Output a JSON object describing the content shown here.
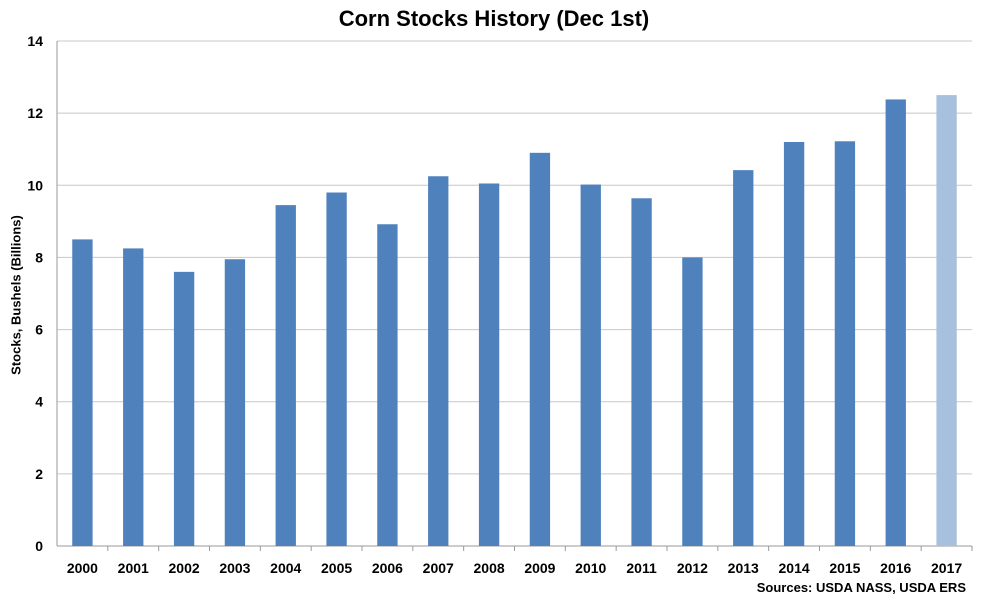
{
  "chart_data": {
    "type": "bar",
    "title": "Corn Stocks History (Dec 1st)",
    "ylabel": "Stocks, Bushels (Billions)",
    "xlabel": "",
    "source": "Sources: USDA NASS, USDA ERS",
    "ylim": [
      0,
      14
    ],
    "yticks": [
      0,
      2,
      4,
      6,
      8,
      10,
      12,
      14
    ],
    "grid": true,
    "categories": [
      "2000",
      "2001",
      "2002",
      "2003",
      "2004",
      "2005",
      "2006",
      "2007",
      "2008",
      "2009",
      "2010",
      "2011",
      "2012",
      "2013",
      "2014",
      "2015",
      "2016",
      "2017"
    ],
    "values": [
      8.5,
      8.25,
      7.6,
      7.95,
      9.45,
      9.8,
      8.92,
      10.25,
      10.05,
      10.9,
      10.02,
      9.64,
      8.0,
      10.42,
      11.2,
      11.22,
      12.38,
      12.5
    ],
    "colors": {
      "bar": "#4f81bd",
      "highlight_bar": "#a7c0de",
      "grid": "#c8c8c8"
    },
    "highlight_index": 17
  }
}
